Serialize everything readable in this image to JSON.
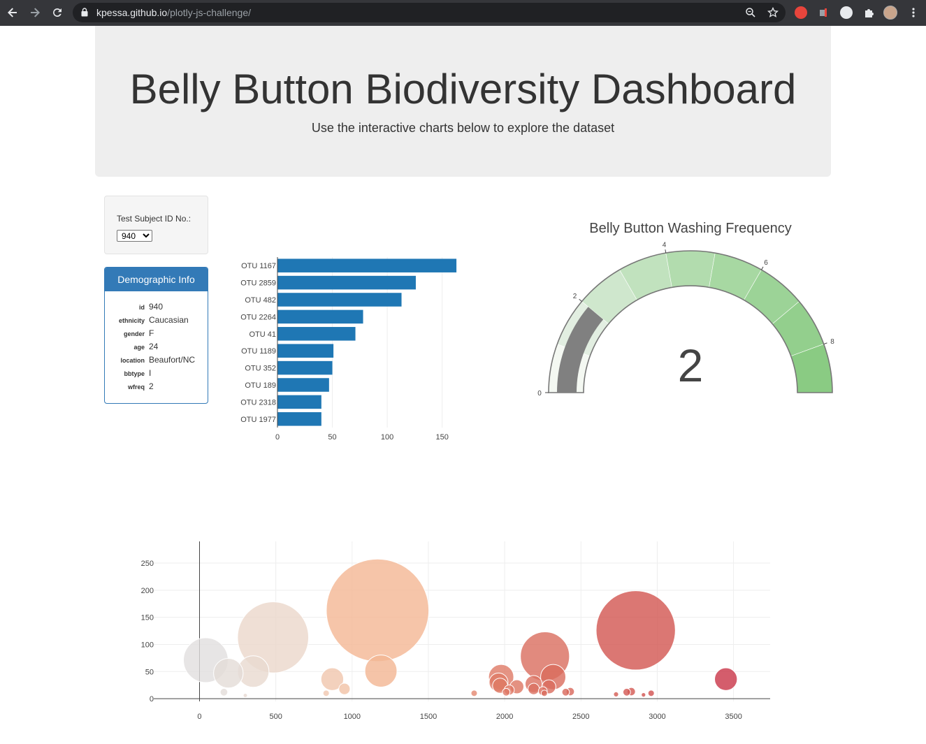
{
  "browser": {
    "url_host": "kpessa.github.io",
    "url_path": "/plotly-js-challenge/",
    "back_icon": "arrow-left-icon",
    "forward_icon": "arrow-right-icon",
    "reload_icon": "reload-icon"
  },
  "header": {
    "title": "Belly Button Biodiversity Dashboard",
    "subtitle": "Use the interactive charts below to explore the dataset"
  },
  "selector": {
    "label": "Test Subject ID No.:",
    "selected": "940"
  },
  "demographics": {
    "heading": "Demographic Info",
    "rows": [
      {
        "key": "id",
        "value": "940"
      },
      {
        "key": "ethnicity",
        "value": "Caucasian"
      },
      {
        "key": "gender",
        "value": "F"
      },
      {
        "key": "age",
        "value": "24"
      },
      {
        "key": "location",
        "value": "Beaufort/NC"
      },
      {
        "key": "bbtype",
        "value": "I"
      },
      {
        "key": "wfreq",
        "value": "2"
      }
    ]
  },
  "gauge": {
    "title": "Belly Button Washing Frequency",
    "value": "2",
    "tick_labels": [
      "0",
      "2",
      "4",
      "6",
      "8"
    ]
  },
  "colors": {
    "bar": "#1f77b4",
    "panel": "#337ab7",
    "gauge_needle": "#808080"
  },
  "chart_data": [
    {
      "type": "bar",
      "orientation": "horizontal",
      "categories": [
        "OTU 1167",
        "OTU 2859",
        "OTU 482",
        "OTU 2264",
        "OTU 41",
        "OTU 1189",
        "OTU 352",
        "OTU 189",
        "OTU 2318",
        "OTU 1977"
      ],
      "values": [
        163,
        126,
        113,
        78,
        71,
        51,
        50,
        47,
        40,
        40
      ],
      "xlim": [
        0,
        163
      ],
      "xticks": [
        "0",
        "50",
        "100",
        "150"
      ]
    },
    {
      "type": "gauge",
      "value": 2,
      "range": [
        0,
        9
      ],
      "steps": 9
    },
    {
      "type": "scatter",
      "mode": "bubble",
      "xlim": [
        -300,
        3740
      ],
      "ylim": [
        -5,
        290
      ],
      "xticks": [
        "0",
        "500",
        "1000",
        "1500",
        "2000",
        "2500",
        "3000",
        "3500"
      ],
      "yticks": [
        "0",
        "50",
        "100",
        "150",
        "200",
        "250"
      ],
      "points": [
        {
          "x": 41,
          "y": 71
        },
        {
          "x": 189,
          "y": 47
        },
        {
          "x": 352,
          "y": 50
        },
        {
          "x": 482,
          "y": 113
        },
        {
          "x": 1167,
          "y": 163
        },
        {
          "x": 1189,
          "y": 51
        },
        {
          "x": 870,
          "y": 36
        },
        {
          "x": 950,
          "y": 18
        },
        {
          "x": 1977,
          "y": 40
        },
        {
          "x": 1960,
          "y": 30
        },
        {
          "x": 1970,
          "y": 24
        },
        {
          "x": 2080,
          "y": 22
        },
        {
          "x": 2264,
          "y": 78
        },
        {
          "x": 2318,
          "y": 40
        },
        {
          "x": 2190,
          "y": 27
        },
        {
          "x": 2290,
          "y": 22
        },
        {
          "x": 2190,
          "y": 18
        },
        {
          "x": 2250,
          "y": 14
        },
        {
          "x": 2859,
          "y": 126
        },
        {
          "x": 3450,
          "y": 36
        },
        {
          "x": 2010,
          "y": 12
        },
        {
          "x": 2030,
          "y": 16
        },
        {
          "x": 2400,
          "y": 12
        },
        {
          "x": 2430,
          "y": 13
        },
        {
          "x": 1800,
          "y": 10
        },
        {
          "x": 830,
          "y": 10
        },
        {
          "x": 160,
          "y": 12
        },
        {
          "x": 2800,
          "y": 12
        },
        {
          "x": 2830,
          "y": 13
        },
        {
          "x": 2960,
          "y": 10
        },
        {
          "x": 2910,
          "y": 7
        },
        {
          "x": 2730,
          "y": 8
        },
        {
          "x": 2260,
          "y": 10
        },
        {
          "x": 300,
          "y": 6
        }
      ]
    }
  ]
}
